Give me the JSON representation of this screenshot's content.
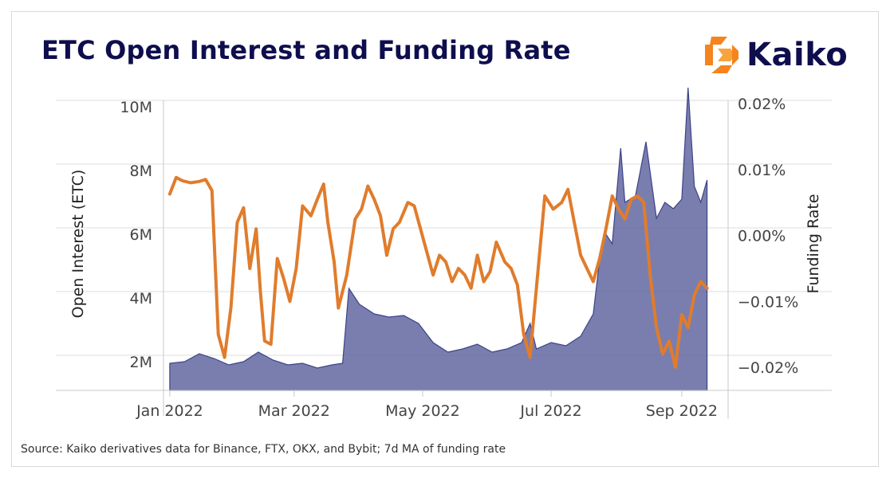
{
  "title": "ETC Open Interest and Funding Rate",
  "logo": {
    "text": "Kaiko",
    "icon": "kaiko-diamond-logo-icon",
    "color": "#f5841f"
  },
  "source": "Source: Kaiko derivatives data for Binance, FTX, OKX, and Bybit; 7d MA of funding rate",
  "colors": {
    "open_interest": "#5b629e",
    "funding_rate": "#e07c2c",
    "title": "#0e0e4e"
  },
  "chart_data": {
    "type": "area+line",
    "x_ticks": [
      "Jan 2022",
      "Mar 2022",
      "May 2022",
      "Jul 2022",
      "Sep 2022"
    ],
    "y_left": {
      "label": "Open Interest (ETC)",
      "ticks": [
        "2M",
        "4M",
        "6M",
        "8M",
        "10M"
      ],
      "range": [
        1100000,
        10200000
      ]
    },
    "y_right": {
      "label": "Funding Rate",
      "ticks": [
        "0.02%",
        "0.01%",
        "0.00%",
        "−0.01%",
        "−0.02%"
      ],
      "range": [
        -0.0235,
        0.0205
      ]
    },
    "grid": true,
    "x_range_days": [
      -3,
      265
    ],
    "series": [
      {
        "name": "Open Interest",
        "axis": "left",
        "type": "area",
        "x_dates": [
          "2022-01-01",
          "2022-01-08",
          "2022-01-15",
          "2022-01-22",
          "2022-01-29",
          "2022-02-05",
          "2022-02-12",
          "2022-02-19",
          "2022-02-26",
          "2022-03-05",
          "2022-03-12",
          "2022-03-19",
          "2022-03-24",
          "2022-03-27",
          "2022-04-01",
          "2022-04-08",
          "2022-04-15",
          "2022-04-22",
          "2022-04-29",
          "2022-05-06",
          "2022-05-13",
          "2022-05-20",
          "2022-05-27",
          "2022-06-03",
          "2022-06-10",
          "2022-06-17",
          "2022-06-21",
          "2022-06-24",
          "2022-07-01",
          "2022-07-08",
          "2022-07-15",
          "2022-07-21",
          "2022-07-24",
          "2022-07-27",
          "2022-07-30",
          "2022-08-03",
          "2022-08-05",
          "2022-08-10",
          "2022-08-15",
          "2022-08-20",
          "2022-08-24",
          "2022-08-28",
          "2022-09-01",
          "2022-09-04",
          "2022-09-07",
          "2022-09-10",
          "2022-09-13"
        ],
        "values": [
          1950000,
          2000000,
          2250000,
          2100000,
          1900000,
          2000000,
          2300000,
          2050000,
          1900000,
          1950000,
          1800000,
          1900000,
          1950000,
          4300000,
          3800000,
          3500000,
          3400000,
          3450000,
          3200000,
          2600000,
          2300000,
          2400000,
          2550000,
          2300000,
          2400000,
          2600000,
          3200000,
          2400000,
          2600000,
          2500000,
          2800000,
          3500000,
          5200000,
          6000000,
          5700000,
          8700000,
          7000000,
          7200000,
          8900000,
          6500000,
          7000000,
          6800000,
          7100000,
          10600000,
          7500000,
          7000000,
          7700000
        ]
      },
      {
        "name": "Funding Rate",
        "axis": "right",
        "type": "line",
        "x_dates": [
          "2022-01-01",
          "2022-01-04",
          "2022-01-07",
          "2022-01-11",
          "2022-01-15",
          "2022-01-18",
          "2022-01-21",
          "2022-01-24",
          "2022-01-27",
          "2022-01-30",
          "2022-02-02",
          "2022-02-05",
          "2022-02-08",
          "2022-02-11",
          "2022-02-13",
          "2022-02-15",
          "2022-02-18",
          "2022-02-21",
          "2022-02-24",
          "2022-02-27",
          "2022-03-02",
          "2022-03-05",
          "2022-03-09",
          "2022-03-12",
          "2022-03-15",
          "2022-03-17",
          "2022-03-20",
          "2022-03-22",
          "2022-03-26",
          "2022-03-30",
          "2022-04-02",
          "2022-04-05",
          "2022-04-08",
          "2022-04-11",
          "2022-04-14",
          "2022-04-17",
          "2022-04-20",
          "2022-04-24",
          "2022-04-27",
          "2022-04-30",
          "2022-05-03",
          "2022-05-06",
          "2022-05-09",
          "2022-05-12",
          "2022-05-15",
          "2022-05-18",
          "2022-05-21",
          "2022-05-24",
          "2022-05-27",
          "2022-05-30",
          "2022-06-02",
          "2022-06-05",
          "2022-06-09",
          "2022-06-12",
          "2022-06-15",
          "2022-06-18",
          "2022-06-21",
          "2022-06-24",
          "2022-06-28",
          "2022-07-02",
          "2022-07-06",
          "2022-07-09",
          "2022-07-12",
          "2022-07-15",
          "2022-07-18",
          "2022-07-21",
          "2022-07-24",
          "2022-07-27",
          "2022-07-30",
          "2022-08-02",
          "2022-08-05",
          "2022-08-08",
          "2022-08-11",
          "2022-08-14",
          "2022-08-17",
          "2022-08-20",
          "2022-08-23",
          "2022-08-26",
          "2022-08-29",
          "2022-09-01",
          "2022-09-04",
          "2022-09-07",
          "2022-09-10",
          "2022-09-13"
        ],
        "values": [
          0.0063,
          0.0088,
          0.0083,
          0.008,
          0.0082,
          0.0085,
          0.0068,
          -0.015,
          -0.0185,
          -0.011,
          0.002,
          0.0042,
          -0.005,
          0.001,
          -0.0085,
          -0.016,
          -0.0165,
          -0.0035,
          -0.0065,
          -0.01,
          -0.005,
          0.0045,
          0.003,
          0.0055,
          0.0078,
          0.002,
          -0.004,
          -0.011,
          -0.006,
          0.0025,
          0.004,
          0.0075,
          0.0055,
          0.003,
          -0.003,
          0.001,
          0.002,
          0.005,
          0.0045,
          0.001,
          -0.0025,
          -0.006,
          -0.003,
          -0.004,
          -0.007,
          -0.005,
          -0.006,
          -0.008,
          -0.003,
          -0.007,
          -0.0055,
          -0.001,
          -0.004,
          -0.005,
          -0.0075,
          -0.015,
          -0.0185,
          -0.008,
          0.006,
          0.004,
          0.005,
          0.007,
          0.002,
          -0.003,
          -0.005,
          -0.007,
          -0.0035,
          0.001,
          0.006,
          0.004,
          0.0025,
          0.0055,
          0.006,
          0.005,
          -0.006,
          -0.014,
          -0.018,
          -0.016,
          -0.02,
          -0.012,
          -0.014,
          -0.009,
          -0.007,
          -0.008
        ]
      }
    ]
  }
}
